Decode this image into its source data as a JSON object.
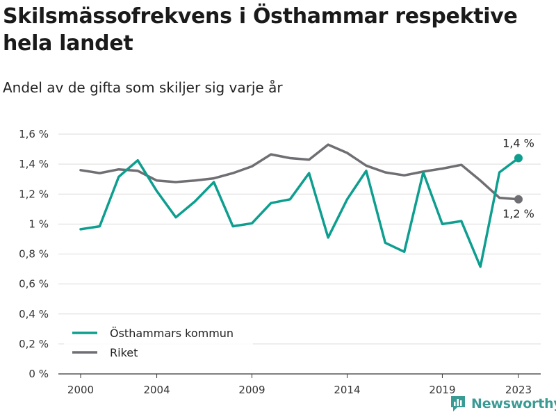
{
  "chart_data": {
    "type": "line",
    "title": "Skilsmässofrekvens i Östhammar respektive hela landet",
    "subtitle": "Andel av de gifta som skiljer sig varje år",
    "x": [
      2000,
      2001,
      2002,
      2003,
      2004,
      2005,
      2006,
      2007,
      2008,
      2009,
      2010,
      2011,
      2012,
      2013,
      2014,
      2015,
      2016,
      2017,
      2018,
      2019,
      2020,
      2021,
      2022,
      2023
    ],
    "x_ticks": [
      "2000",
      "2004",
      "2009",
      "2014",
      "2019",
      "2023"
    ],
    "y_ticks": [
      "0 %",
      "0,2 %",
      "0,4 %",
      "0,6 %",
      "0,8 %",
      "1 %",
      "1,2 %",
      "1,4 %",
      "1,6 %"
    ],
    "ylim": [
      0,
      1.6
    ],
    "grid": true,
    "legend_position": "bottom-left",
    "series": [
      {
        "name": "Östhammars kommun",
        "color": "#0d9e8f",
        "end_label": "1,4 %",
        "values": [
          0.965,
          0.985,
          1.315,
          1.425,
          1.22,
          1.045,
          1.15,
          1.28,
          0.985,
          1.005,
          1.14,
          1.165,
          1.34,
          0.91,
          1.165,
          1.355,
          0.875,
          0.815,
          1.345,
          1.0,
          1.02,
          0.715,
          1.345,
          1.44
        ]
      },
      {
        "name": "Riket",
        "color": "#6e6e73",
        "end_label": "1,2 %",
        "values": [
          1.36,
          1.34,
          1.365,
          1.355,
          1.29,
          1.28,
          1.29,
          1.305,
          1.34,
          1.385,
          1.465,
          1.44,
          1.43,
          1.53,
          1.475,
          1.39,
          1.345,
          1.325,
          1.35,
          1.37,
          1.395,
          1.29,
          1.175,
          1.165
        ]
      }
    ]
  },
  "brand": {
    "name": "Newsworthy"
  }
}
